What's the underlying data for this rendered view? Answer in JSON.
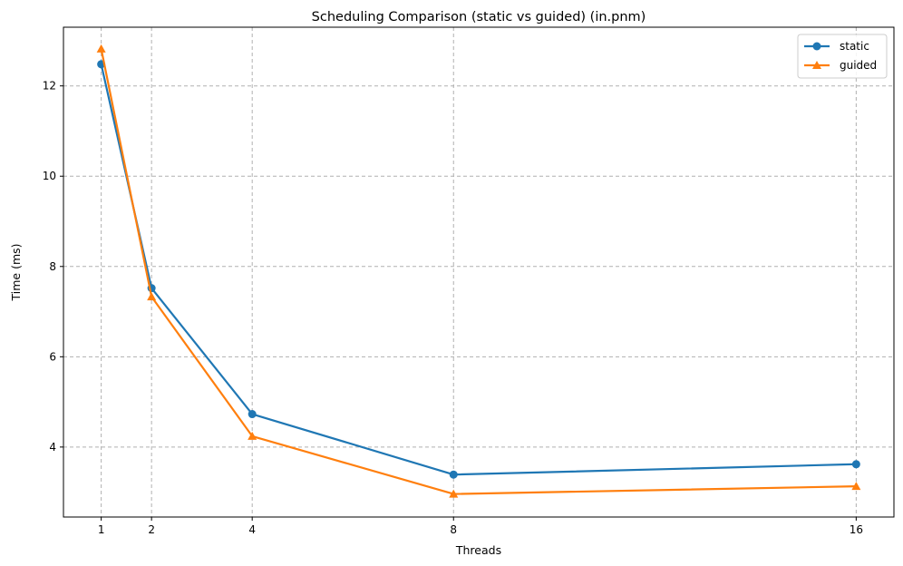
{
  "chart_data": {
    "type": "line",
    "title": "Scheduling Comparison (static vs guided) (in.pnm)",
    "xlabel": "Threads",
    "ylabel": "Time (ms)",
    "xlim": [
      0.25,
      16.75
    ],
    "ylim": [
      2.45,
      13.3
    ],
    "xticks": [
      1,
      2,
      4,
      8,
      16
    ],
    "xtick_labels": [
      "1",
      "2",
      "4",
      "8",
      "16"
    ],
    "yticks": [
      4,
      6,
      8,
      10,
      12
    ],
    "ytick_labels": [
      "4",
      "6",
      "8",
      "10",
      "12"
    ],
    "grid": true,
    "legend_position": "top-right",
    "series": [
      {
        "name": "static",
        "color": "#1f77b4",
        "marker": "circle",
        "x": [
          1,
          2,
          4,
          8,
          16
        ],
        "y": [
          12.48,
          7.52,
          4.73,
          3.39,
          3.62
        ]
      },
      {
        "name": "guided",
        "color": "#ff7f0e",
        "marker": "triangle",
        "x": [
          1,
          2,
          4,
          8,
          16
        ],
        "y": [
          12.82,
          7.33,
          4.24,
          2.96,
          3.13
        ]
      }
    ]
  }
}
